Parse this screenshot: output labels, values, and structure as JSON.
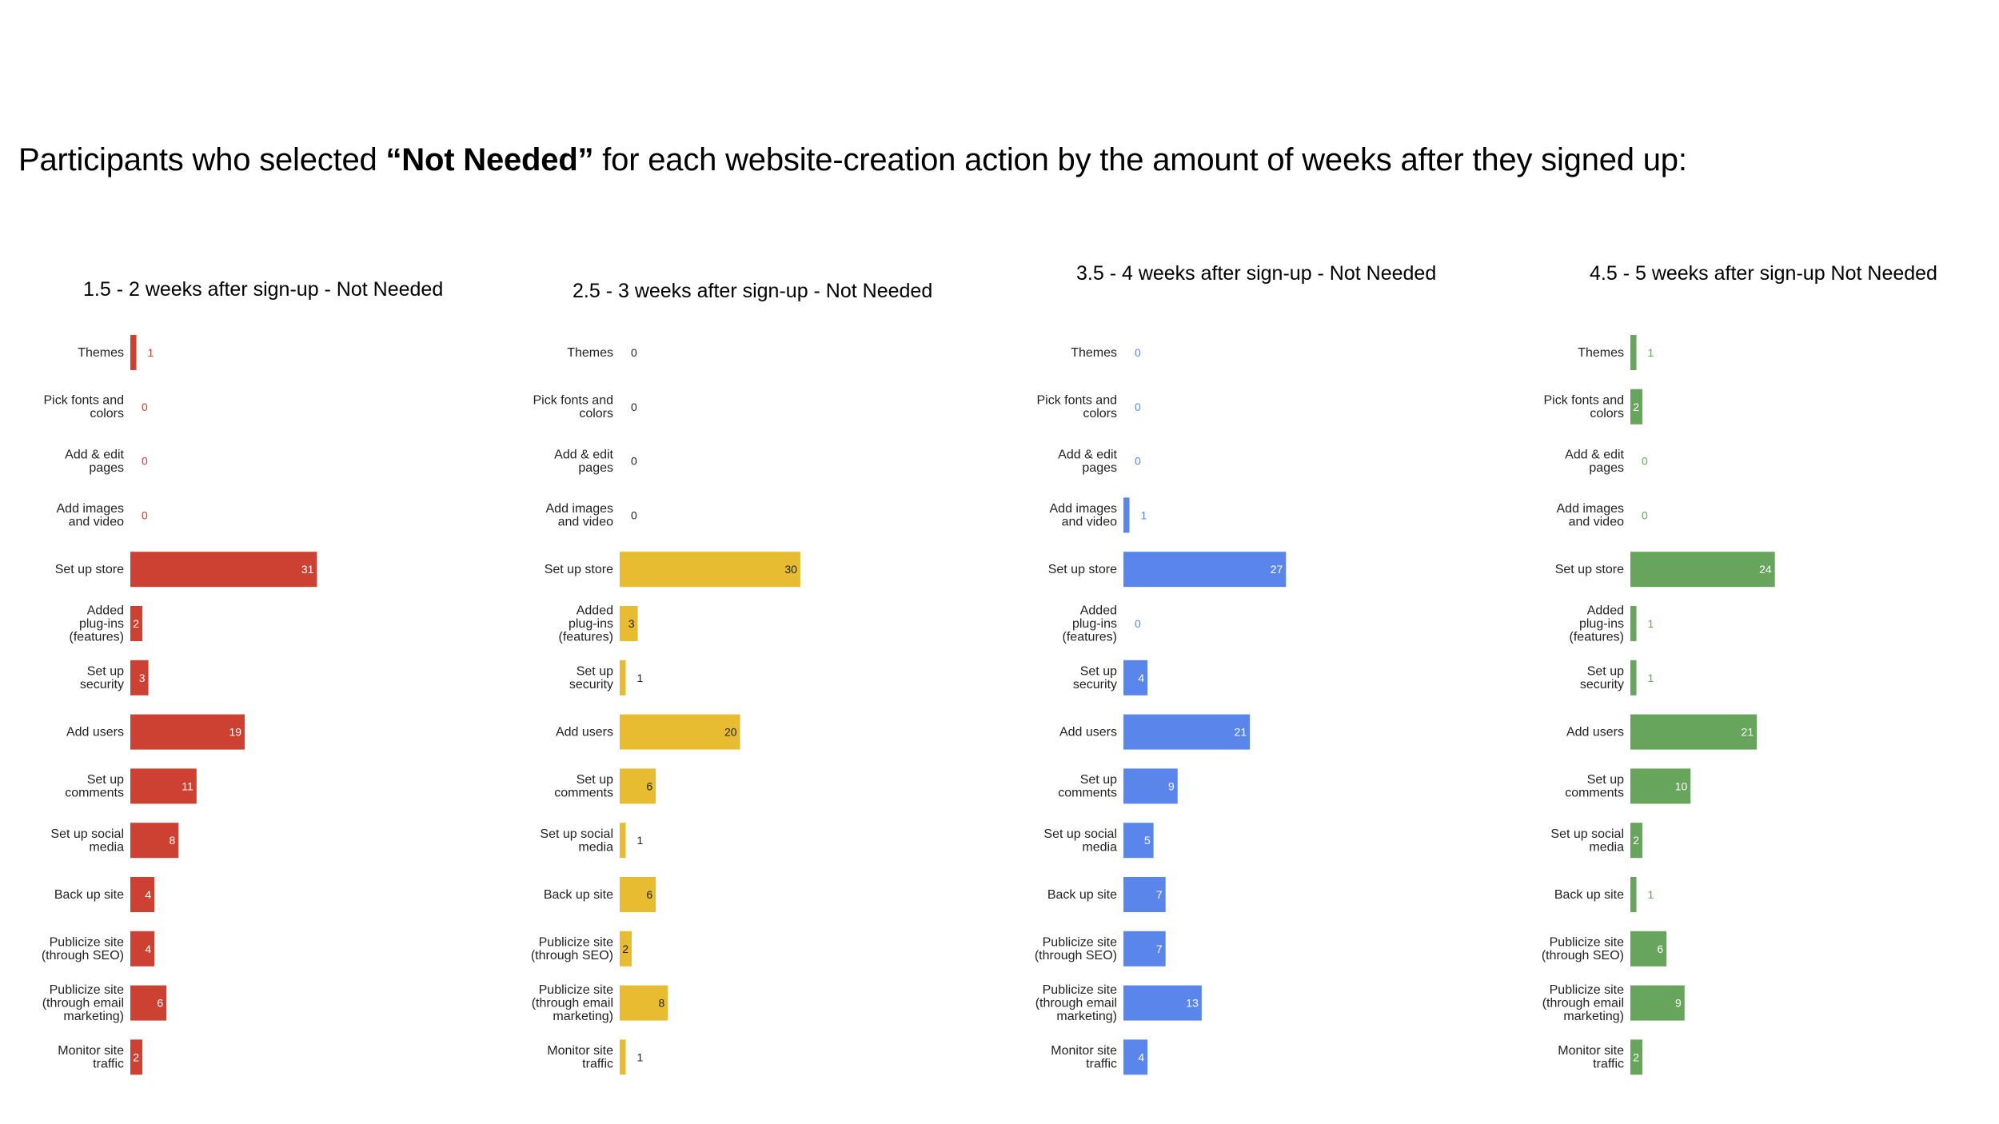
{
  "heading": {
    "prefix": "Participants who selected ",
    "emphasis": "“Not Needed”",
    "suffix": " for each website-creation action by the amount of weeks after they signed up:"
  },
  "chart_data": [
    {
      "type": "bar",
      "orientation": "horizontal",
      "title": "1.5 - 2 weeks after sign-up - Not Needed",
      "color": "#cc4132",
      "categories": [
        "Themes",
        "Pick fonts and colors",
        "Add & edit pages",
        "Add images and video",
        "Set up store",
        "Added plug-ins (features)",
        "Set up security",
        "Add users",
        "Set up comments",
        "Set up social media",
        "Back up site",
        "Publicize site (through SEO)",
        "Publicize site (through email marketing)",
        "Monitor site traffic"
      ],
      "values": [
        1,
        0,
        0,
        0,
        31,
        2,
        3,
        19,
        11,
        8,
        4,
        4,
        6,
        2
      ]
    },
    {
      "type": "bar",
      "orientation": "horizontal",
      "title": "2.5 - 3 weeks after sign-up - Not Needed",
      "color": "#e8bc30",
      "categories": [
        "Themes",
        "Pick fonts and colors",
        "Add & edit pages",
        "Add images and video",
        "Set up store",
        "Added plug-ins (features)",
        "Set up security",
        "Add users",
        "Set up comments",
        "Set up social media",
        "Back up site",
        "Publicize site (through SEO)",
        "Publicize site (through email marketing)",
        "Monitor site traffic"
      ],
      "values": [
        0,
        0,
        0,
        0,
        30,
        3,
        1,
        20,
        6,
        1,
        6,
        2,
        8,
        1
      ]
    },
    {
      "type": "bar",
      "orientation": "horizontal",
      "title": "3.5 - 4 weeks after sign-up - Not Needed",
      "color": "#5a86ec",
      "categories": [
        "Themes",
        "Pick fonts and colors",
        "Add & edit pages",
        "Add images and video",
        "Set up store",
        "Added plug-ins (features)",
        "Set up security",
        "Add users",
        "Set up comments",
        "Set up social media",
        "Back up site",
        "Publicize site (through SEO)",
        "Publicize site (through email marketing)",
        "Monitor site traffic"
      ],
      "values": [
        0,
        0,
        0,
        1,
        27,
        0,
        4,
        21,
        9,
        5,
        7,
        7,
        13,
        4
      ]
    },
    {
      "type": "bar",
      "orientation": "horizontal",
      "title": "4.5 - 5 weeks after sign-up Not Needed",
      "color": "#66a55b",
      "categories": [
        "Themes",
        "Pick fonts and colors",
        "Add & edit pages",
        "Add images and video",
        "Set up store",
        "Added plug-ins (features)",
        "Set up security",
        "Add users",
        "Set up comments",
        "Set up social media",
        "Back up site",
        "Publicize site (through SEO)",
        "Publicize site (through email marketing)",
        "Monitor site traffic"
      ],
      "values": [
        1,
        2,
        0,
        0,
        24,
        1,
        1,
        21,
        10,
        2,
        1,
        6,
        9,
        2
      ]
    }
  ]
}
